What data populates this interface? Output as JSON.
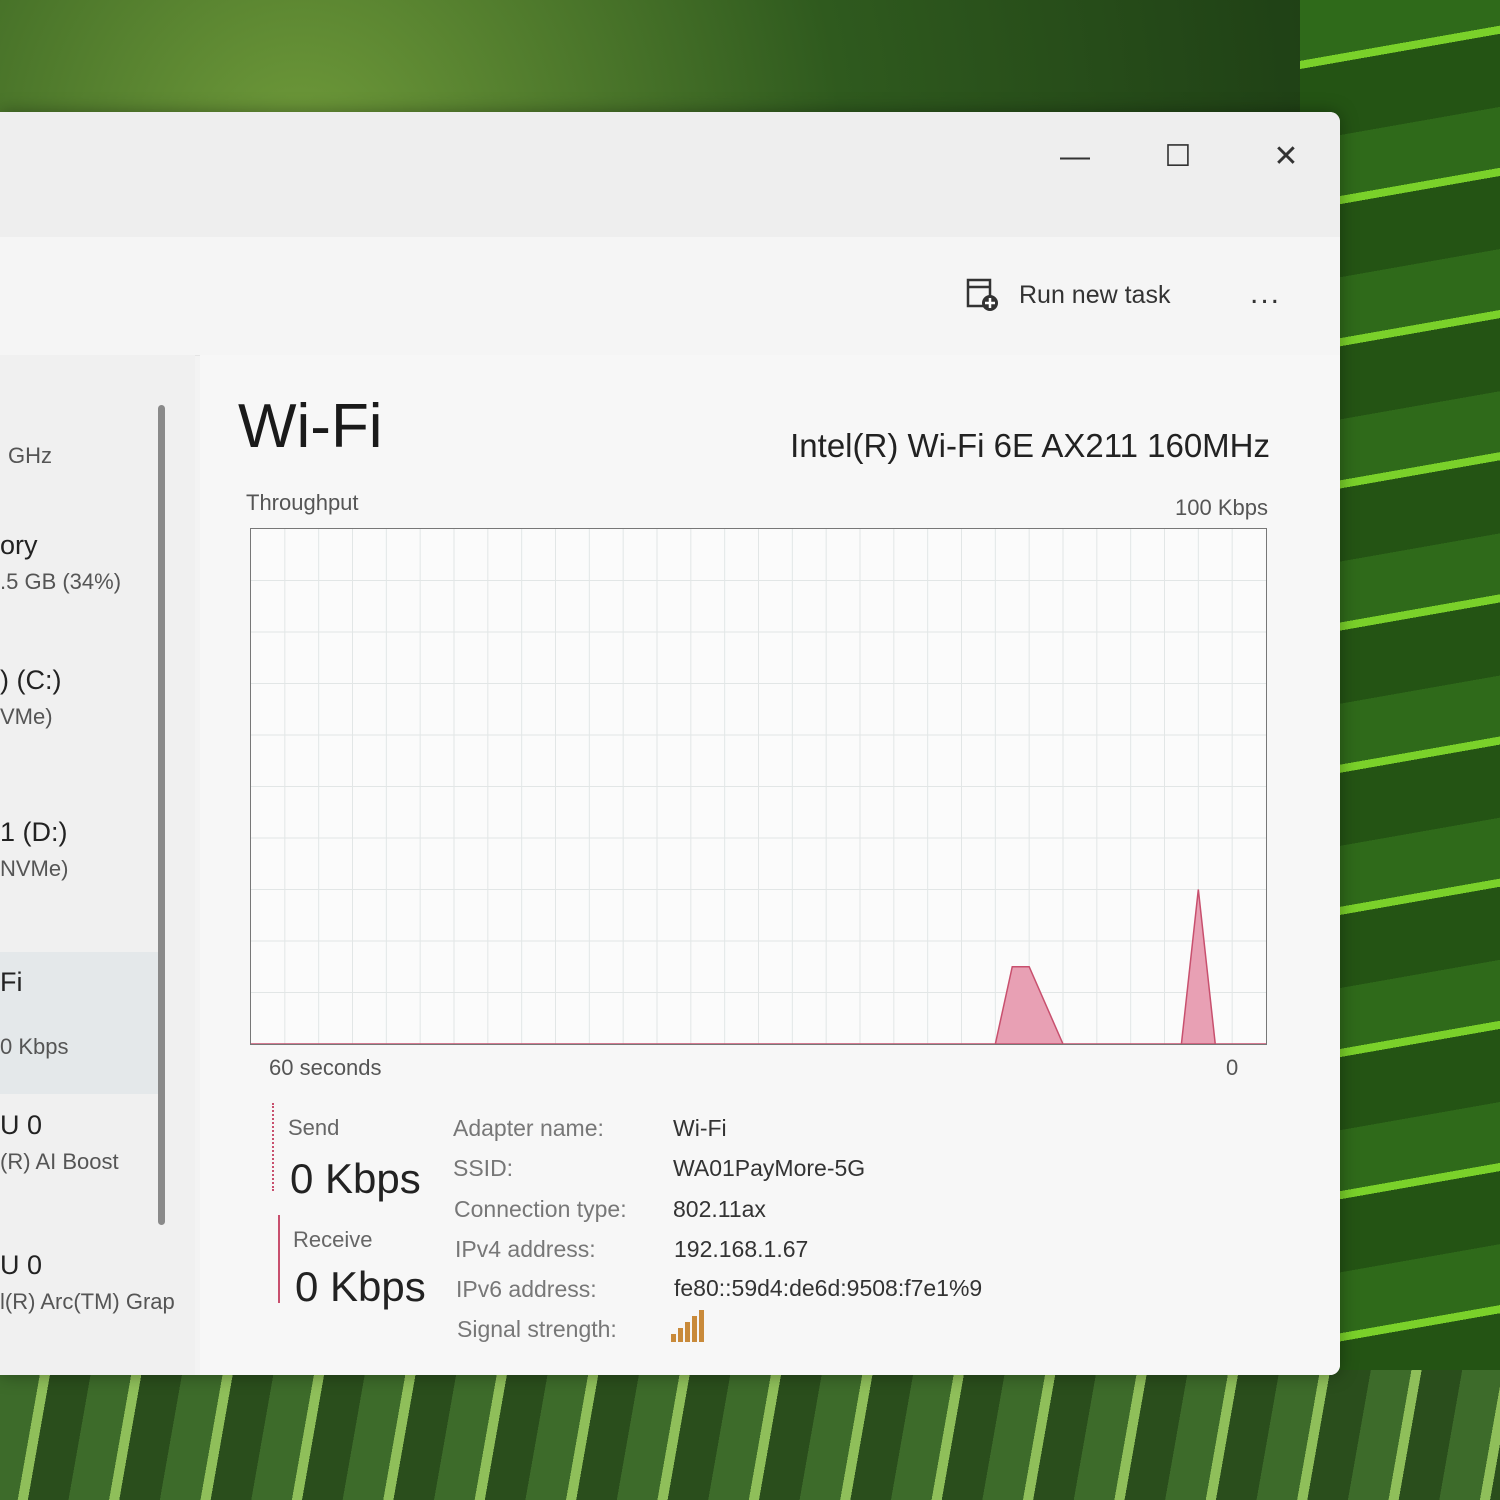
{
  "window": {
    "controls": {
      "minimize": "—",
      "maximize": "☐",
      "close": "✕"
    }
  },
  "toolbar": {
    "run_new_task": "Run new task",
    "more": "..."
  },
  "sidebar": {
    "items": [
      {
        "title": "",
        "sub": "GHz"
      },
      {
        "title": "ory",
        "sub": ".5 GB (34%)"
      },
      {
        "title": ") (C:)",
        "sub": "VMe)"
      },
      {
        "title": "1 (D:)",
        "sub": "NVMe)"
      },
      {
        "title": "Fi",
        "sub": "0 Kbps",
        "selected": true
      },
      {
        "title": "U 0",
        "sub": "(R) AI Boost"
      },
      {
        "title": "U 0",
        "sub": "l(R) Arc(TM) Grap"
      }
    ]
  },
  "main": {
    "title": "Wi-Fi",
    "adapter": "Intel(R) Wi-Fi 6E AX211 160MHz",
    "graph_label": "Throughput",
    "graph_max": "100 Kbps",
    "time_left": "60 seconds",
    "time_right": "0",
    "send": {
      "label": "Send",
      "value": "0 Kbps"
    },
    "receive": {
      "label": "Receive",
      "value": "0 Kbps"
    },
    "details": [
      {
        "label": "Adapter name:",
        "value": "Wi-Fi"
      },
      {
        "label": "SSID:",
        "value": "WA01PayMore-5G"
      },
      {
        "label": "Connection type:",
        "value": "802.11ax"
      },
      {
        "label": "IPv4 address:",
        "value": "192.168.1.67"
      },
      {
        "label": "IPv6 address:",
        "value": "fe80::59d4:de6d:9508:f7e1%9"
      },
      {
        "label": "Signal strength:",
        "value": ""
      }
    ],
    "signal_bars": 5
  },
  "colors": {
    "receive": "#e8a0b4",
    "receive_line": "#c8506e",
    "signal": "#c98a3a"
  },
  "chart_data": {
    "type": "area",
    "xlabel_left": "60 seconds",
    "xlabel_right": "0",
    "ylim": [
      0,
      100
    ],
    "y_unit": "Kbps",
    "grid": true,
    "series": [
      {
        "points": [
          [
            60,
            0
          ],
          [
            17,
            0
          ],
          [
            16,
            0
          ],
          [
            15,
            15
          ],
          [
            14,
            15
          ],
          [
            12,
            0
          ],
          [
            5,
            0
          ],
          [
            4,
            30
          ],
          [
            3,
            0
          ],
          [
            0,
            0
          ]
        ]
      }
    ]
  }
}
